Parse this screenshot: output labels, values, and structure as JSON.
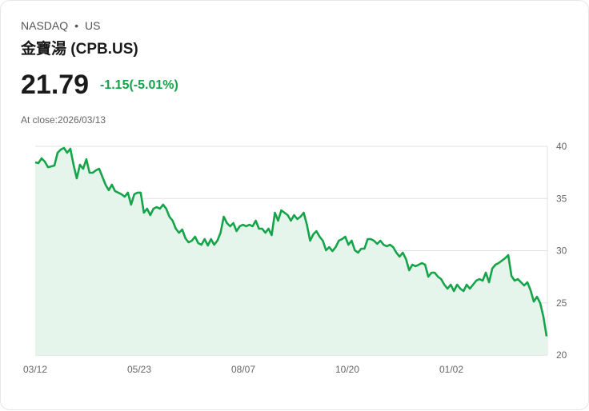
{
  "header": {
    "exchange": "NASDAQ",
    "separator": "•",
    "market": "US",
    "name": "金寶湯 (CPB.US)",
    "price": "21.79",
    "change": "-1.15(-5.01%)",
    "close_label": "At close:2026/03/13"
  },
  "colors": {
    "line": "#16a34a",
    "fill": "#e6f5ec",
    "grid": "#e2e2e2"
  },
  "chart_data": {
    "type": "area",
    "title": "",
    "xlabel": "",
    "ylabel": "",
    "ylim": [
      20,
      40
    ],
    "y_ticks": [
      "40",
      "35",
      "30",
      "25",
      "20"
    ],
    "x_ticks": [
      "03/12",
      "05/23",
      "08/07",
      "10/20",
      "01/02"
    ],
    "grid": true,
    "values": [
      38.47,
      38.39,
      38.85,
      38.54,
      38.0,
      38.08,
      38.16,
      39.39,
      39.69,
      39.85,
      39.39,
      39.77,
      38.24,
      36.93,
      38.24,
      37.85,
      38.77,
      37.47,
      37.47,
      37.7,
      37.85,
      37.09,
      36.32,
      35.79,
      36.32,
      35.71,
      35.56,
      35.4,
      35.17,
      35.56,
      34.41,
      35.4,
      35.56,
      35.56,
      33.64,
      34.02,
      33.41,
      34.02,
      34.18,
      34.02,
      34.41,
      34.02,
      33.26,
      32.87,
      32.11,
      31.72,
      32.03,
      31.19,
      30.8,
      30.96,
      31.34,
      30.73,
      30.57,
      31.11,
      30.5,
      31.11,
      30.57,
      30.96,
      31.72,
      33.26,
      32.64,
      32.34,
      32.64,
      31.88,
      32.34,
      32.49,
      32.34,
      32.49,
      32.34,
      32.87,
      32.11,
      32.11,
      31.72,
      32.11,
      31.49,
      33.64,
      32.87,
      33.87,
      33.64,
      33.41,
      32.87,
      33.41,
      33.03,
      33.26,
      33.64,
      32.49,
      30.96,
      31.57,
      31.88,
      31.34,
      30.96,
      30.04,
      30.34,
      29.96,
      30.34,
      30.96,
      31.11,
      31.34,
      30.57,
      30.96,
      30.04,
      29.81,
      30.19,
      30.19,
      31.11,
      31.11,
      30.96,
      30.65,
      30.96,
      30.57,
      30.42,
      30.57,
      30.34,
      29.81,
      29.43,
      29.81,
      29.2,
      28.12,
      28.66,
      28.51,
      28.66,
      28.81,
      28.66,
      27.51,
      27.89,
      27.89,
      27.51,
      27.28,
      26.74,
      26.36,
      26.74,
      26.13,
      26.74,
      26.36,
      26.13,
      26.74,
      26.36,
      26.74,
      27.13,
      27.28,
      27.13,
      27.89,
      26.97,
      28.28,
      28.66,
      28.81,
      29.04,
      29.27,
      29.58,
      27.59,
      27.13,
      27.28,
      26.97,
      26.67,
      26.97,
      26.21,
      25.13,
      25.59,
      24.98,
      23.68,
      21.79
    ]
  }
}
